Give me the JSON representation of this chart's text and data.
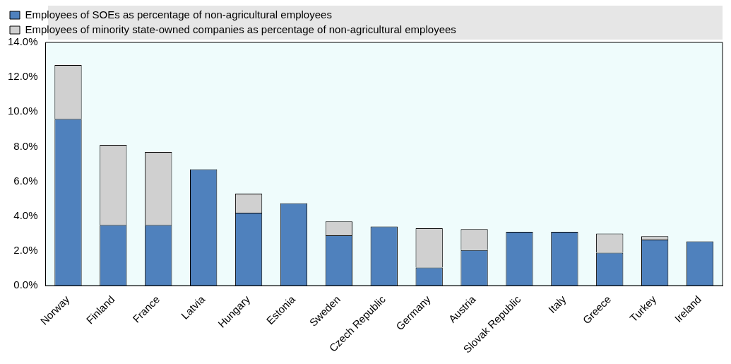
{
  "chart_data": {
    "type": "bar",
    "stacked": true,
    "legend": "top",
    "categories": [
      "Norway",
      "Finland",
      "France",
      "Latvia",
      "Hungary",
      "Estonia",
      "Sweden",
      "Czech Republic",
      "Germany",
      "Austria",
      "Slovak Republic",
      "Italy",
      "Greece",
      "Turkey",
      "Ireland"
    ],
    "series": [
      {
        "name": "Employees of SOEs as percentage of non-agricultural employees",
        "color": "#4f81bd",
        "values": [
          9.6,
          3.5,
          3.5,
          6.7,
          4.2,
          4.75,
          2.9,
          3.4,
          1.05,
          2.05,
          3.1,
          3.1,
          1.9,
          2.65,
          2.55
        ]
      },
      {
        "name": "Employees of minority state-owned companies as percentage of non-agricultural employees",
        "color": "#d0d0d0",
        "values": [
          3.1,
          4.6,
          4.2,
          null,
          1.1,
          0,
          0.8,
          0,
          2.25,
          1.2,
          0,
          0,
          1.1,
          0.2,
          0
        ]
      }
    ],
    "ylim": [
      0,
      14
    ],
    "yticks": [
      {
        "value": 0,
        "label": "0.0%"
      },
      {
        "value": 2,
        "label": "2.0%"
      },
      {
        "value": 4,
        "label": "4.0%"
      },
      {
        "value": 6,
        "label": "6.0%"
      },
      {
        "value": 8,
        "label": "8.0%"
      },
      {
        "value": 10,
        "label": "10.0%"
      },
      {
        "value": 12,
        "label": "12.0%"
      },
      {
        "value": 14,
        "label": "14.0%"
      }
    ]
  }
}
